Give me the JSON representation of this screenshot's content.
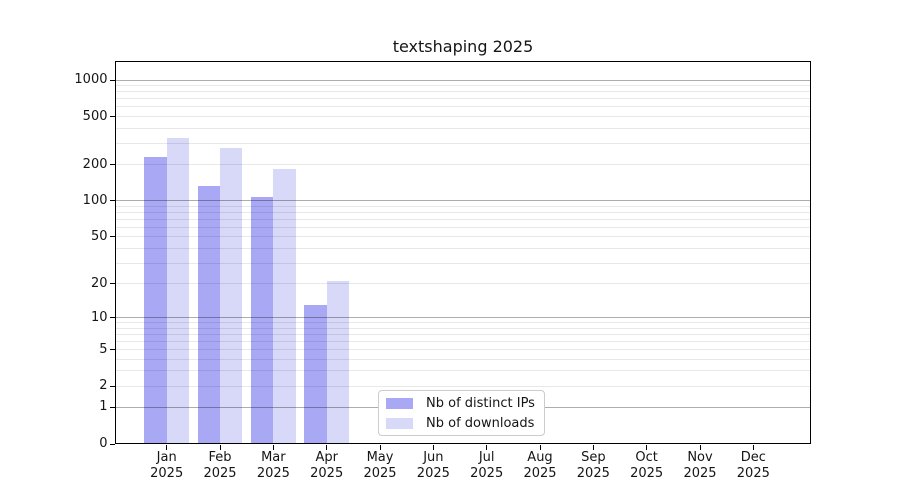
{
  "chart_data": {
    "type": "bar",
    "title": "textshaping 2025",
    "categories": [
      "Jan",
      "Feb",
      "Mar",
      "Apr",
      "May",
      "Jun",
      "Jul",
      "Aug",
      "Sep",
      "Oct",
      "Nov",
      "Dec"
    ],
    "category_year": "2025",
    "series": [
      {
        "name": "Nb of distinct IPs",
        "color": "#a8a8f4",
        "values": [
          230,
          132,
          108,
          13,
          0,
          0,
          0,
          0,
          0,
          0,
          0,
          0
        ]
      },
      {
        "name": "Nb of downloads",
        "color": "#d8d8f8",
        "values": [
          335,
          275,
          185,
          21,
          0,
          0,
          0,
          0,
          0,
          0,
          0,
          0
        ]
      }
    ],
    "yscale": "log1p",
    "ylim": [
      0,
      1450
    ],
    "yticks": [
      0,
      1,
      2,
      5,
      10,
      20,
      50,
      100,
      200,
      500,
      1000
    ],
    "grid": "horizontal, major and minor, drawn above bars",
    "legend_position": "lower center"
  }
}
